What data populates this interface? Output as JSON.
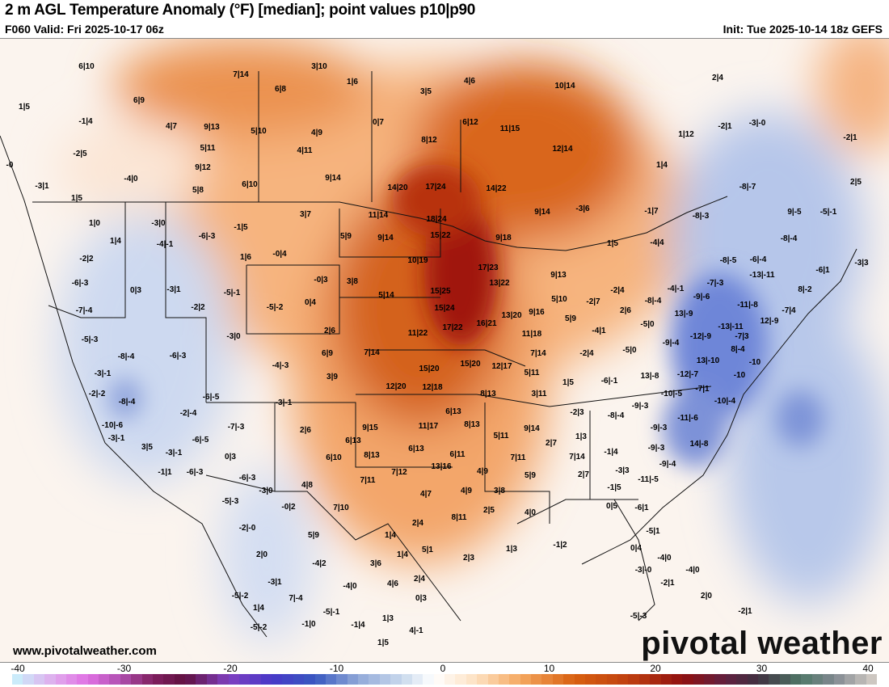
{
  "header": {
    "title": "2 m AGL Temperature Anomaly (°F) [median]; point values p10|p90",
    "valid": "F060 Valid: Fri 2025-10-17 06z",
    "init": "Init: Tue 2025-10-14 18z GEFS"
  },
  "footer": {
    "site": "www.pivotalweather.com",
    "logo": "pivotal weather"
  },
  "colorbar": {
    "ticks": [
      "-40",
      "-30",
      "-20",
      "-10",
      "0",
      "10",
      "20",
      "30",
      "40"
    ],
    "stops": [
      [
        -40,
        "#c8f4fc"
      ],
      [
        -36,
        "#e0a8ec"
      ],
      [
        -33,
        "#e070e4"
      ],
      [
        -30,
        "#b050b0"
      ],
      [
        -27,
        "#802060"
      ],
      [
        -24,
        "#601040"
      ],
      [
        -20,
        "#8040c0"
      ],
      [
        -16,
        "#4838c8"
      ],
      [
        -12,
        "#3858c0"
      ],
      [
        -8,
        "#90a8d8"
      ],
      [
        -4,
        "#c8d8ec"
      ],
      [
        -1,
        "#ffffff"
      ],
      [
        3,
        "#fde0c0"
      ],
      [
        7,
        "#f5a860"
      ],
      [
        12,
        "#d86010"
      ],
      [
        17,
        "#c04010"
      ],
      [
        22,
        "#901010"
      ],
      [
        26,
        "#602040"
      ],
      [
        29,
        "#403040"
      ],
      [
        33,
        "#507868"
      ],
      [
        36,
        "#808890"
      ],
      [
        40,
        "#d8d0c8"
      ]
    ]
  },
  "points": [
    "6|10",
    "7|14",
    "3|10",
    "1|6",
    "6|8",
    "3|5",
    "4|6",
    "10|14",
    "2|4",
    "1|5",
    "6|9",
    "-1|4",
    "4|7",
    "9|13",
    "5|10",
    "4|9",
    "0|7",
    "6|12",
    "11|15",
    "1|12",
    "-2|1",
    "-3|-0",
    "-2|1",
    "-2|5",
    "5|11",
    "4|11",
    "8|12",
    "12|14",
    "-0",
    "9|12",
    "1|4",
    "-4|0",
    "-3|1",
    "5|8",
    "6|10",
    "9|14",
    "14|20",
    "17|24",
    "14|22",
    "-8|-7",
    "2|5",
    "1|5",
    "1|0",
    "-3|0",
    "3|7",
    "11|14",
    "18|24",
    "9|14",
    "-3|6",
    "-1|7",
    "-8|-3",
    "9|-5",
    "-5|-1",
    "1|4",
    "-4|-1",
    "-6|-3",
    "-1|5",
    "5|9",
    "9|14",
    "15|22",
    "9|18",
    "1|5",
    "-4|4",
    "-8|-4",
    "-2|2",
    "1|6",
    "-0|4",
    "10|19",
    "9|13",
    "17|23",
    "-8|-5",
    "-6|-4",
    "-6|1",
    "-3|3",
    "-6|-3",
    "0|3",
    "-3|1",
    "-5|-1",
    "-0|3",
    "3|8",
    "13|22",
    "-13|-11",
    "8|-2",
    "-7|-3",
    "-4|-1",
    "-9|-6",
    "-7|-4",
    "-2|2",
    "-5|-2",
    "0|4",
    "5|14",
    "15|25",
    "5|10",
    "-2|7",
    "-2|4",
    "-8|-4",
    "-11|-8",
    "-7|4",
    "15|24",
    "13|20",
    "9|16",
    "2|6",
    "13|-9",
    "-13|-11",
    "12|-9",
    "-5|-3",
    "-3|0",
    "2|6",
    "11|22",
    "17|22",
    "16|21",
    "5|9",
    "-5|0",
    "-4|1",
    "11|18",
    "-12|-9",
    "-7|3",
    "-8|-4",
    "-6|-3",
    "6|9",
    "7|14",
    "7|14",
    "-2|4",
    "-5|0",
    "-9|-4",
    "13|-10",
    "8|-4",
    "-10",
    "-10",
    "-4|-3",
    "15|20",
    "15|20",
    "12|17",
    "5|11",
    "-3|-1",
    "3|9",
    "-6|-1",
    "13|-8",
    "-12|-7",
    "-7|1",
    "1|5",
    "-2|-2",
    "-8|-4",
    "-6|-5",
    "12|20",
    "12|18",
    "8|13",
    "3|11",
    "-10|-5",
    "-10|-4",
    "-2|-4",
    "-3|-1",
    "6|13",
    "-2|3",
    "-8|-4",
    "-9|-3",
    "-10|-6",
    "-7|-3",
    "2|6",
    "9|15",
    "11|17",
    "8|13",
    "9|14",
    "-9|-3",
    "-11|-6",
    "-3|-1",
    "-6|-5",
    "6|13",
    "5|11",
    "1|3",
    "14|-8",
    "3|5",
    "-3|-1",
    "0|3",
    "6|13",
    "6|11",
    "2|7",
    "-9|-3",
    "6|10",
    "8|13",
    "7|11",
    "7|14",
    "-1|4",
    "-9|-4",
    "-1|1",
    "-6|-3",
    "-6|-3",
    "13|16",
    "7|12",
    "4|9",
    "5|9",
    "2|7",
    "-3|3",
    "-11|-5",
    "-3|0",
    "4|8",
    "7|11",
    "4|7",
    "4|9",
    "3|8",
    "-1|5",
    "-5|-3",
    "-0|2",
    "7|10",
    "8|11",
    "2|5",
    "4|0",
    "0|5",
    "-6|1",
    "-2|-0",
    "2|4",
    "1|4",
    "-5|1",
    "5|9",
    "1|3",
    "-1|2",
    "0|4",
    "2|0",
    "3|6",
    "1|4",
    "5|1",
    "2|3",
    "-4|2",
    "-4|0",
    "-3|1",
    "-4|0",
    "4|6",
    "2|4",
    "-3|-0",
    "-4|0",
    "-2|1",
    "-5|-2",
    "1|4",
    "7|-4",
    "0|3",
    "2|0",
    "-5|-1",
    "1|3",
    "-2|1",
    "-5|-2",
    "-1|0",
    "-1|4",
    "4|-1",
    "-5|-3",
    "1|5"
  ]
}
